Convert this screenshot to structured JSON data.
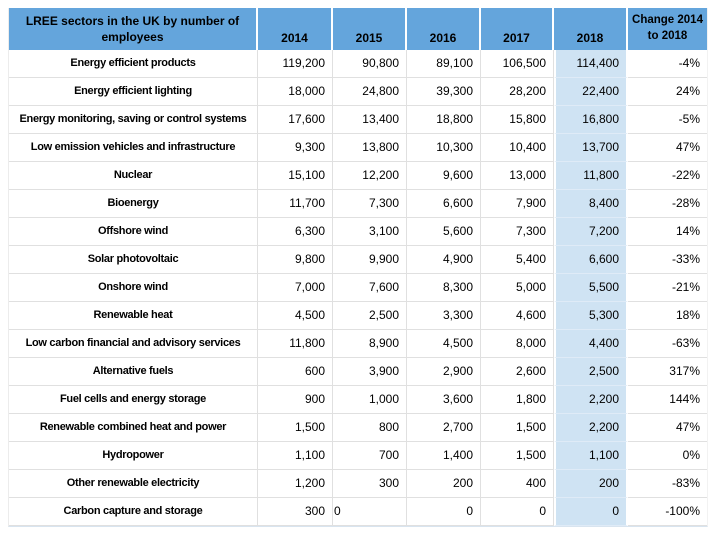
{
  "colors": {
    "header_bg": "#64A5DC",
    "highlight_column_bg": "#CFE3F3",
    "gridline": "#E0E0E0",
    "text": "#000000"
  },
  "chart_data": {
    "type": "table",
    "title": "LREE sectors in the UK by number of employees",
    "highlighted_column": "2018",
    "columns": [
      "LREE sectors in the UK by number of employees",
      "2014",
      "2015",
      "2016",
      "2017",
      "2018",
      "Change 2014 to 2018"
    ],
    "rows": [
      {
        "sector": "Energy efficient products",
        "values": [
          "119,200",
          "90,800",
          "89,100",
          "106,500",
          "114,400"
        ],
        "change": "-4%"
      },
      {
        "sector": "Energy efficient lighting",
        "values": [
          "18,000",
          "24,800",
          "39,300",
          "28,200",
          "22,400"
        ],
        "change": "24%"
      },
      {
        "sector": "Energy monitoring, saving or control systems",
        "values": [
          "17,600",
          "13,400",
          "18,800",
          "15,800",
          "16,800"
        ],
        "change": "-5%"
      },
      {
        "sector": "Low emission vehicles and infrastructure",
        "values": [
          "9,300",
          "13,800",
          "10,300",
          "10,400",
          "13,700"
        ],
        "change": "47%"
      },
      {
        "sector": "Nuclear",
        "values": [
          "15,100",
          "12,200",
          "9,600",
          "13,000",
          "11,800"
        ],
        "change": "-22%"
      },
      {
        "sector": "Bioenergy",
        "values": [
          "11,700",
          "7,300",
          "6,600",
          "7,900",
          "8,400"
        ],
        "change": "-28%"
      },
      {
        "sector": "Offshore wind",
        "values": [
          "6,300",
          "3,100",
          "5,600",
          "7,300",
          "7,200"
        ],
        "change": "14%"
      },
      {
        "sector": "Solar photovoltaic",
        "values": [
          "9,800",
          "9,900",
          "4,900",
          "5,400",
          "6,600"
        ],
        "change": "-33%"
      },
      {
        "sector": "Onshore wind",
        "values": [
          "7,000",
          "7,600",
          "8,300",
          "5,000",
          "5,500"
        ],
        "change": "-21%"
      },
      {
        "sector": "Renewable heat",
        "values": [
          "4,500",
          "2,500",
          "3,300",
          "4,600",
          "5,300"
        ],
        "change": "18%"
      },
      {
        "sector": "Low carbon financial and advisory services",
        "values": [
          "11,800",
          "8,900",
          "4,500",
          "8,000",
          "4,400"
        ],
        "change": "-63%"
      },
      {
        "sector": "Alternative fuels",
        "values": [
          "600",
          "3,900",
          "2,900",
          "2,600",
          "2,500"
        ],
        "change": "317%"
      },
      {
        "sector": "Fuel cells and energy storage",
        "values": [
          "900",
          "1,000",
          "3,600",
          "1,800",
          "2,200"
        ],
        "change": "144%"
      },
      {
        "sector": "Renewable combined heat and power",
        "values": [
          "1,500",
          "800",
          "2,700",
          "1,500",
          "2,200"
        ],
        "change": "47%"
      },
      {
        "sector": "Hydropower",
        "values": [
          "1,100",
          "700",
          "1,400",
          "1,500",
          "1,100"
        ],
        "change": "0%"
      },
      {
        "sector": "Other renewable electricity",
        "values": [
          "1,200",
          "300",
          "200",
          "400",
          "200"
        ],
        "change": "-83%"
      },
      {
        "sector": "Carbon capture and storage",
        "values": [
          "300",
          "0",
          "0",
          "0",
          "0"
        ],
        "change": "-100%",
        "left_aligned_values": [
          1
        ]
      }
    ]
  }
}
